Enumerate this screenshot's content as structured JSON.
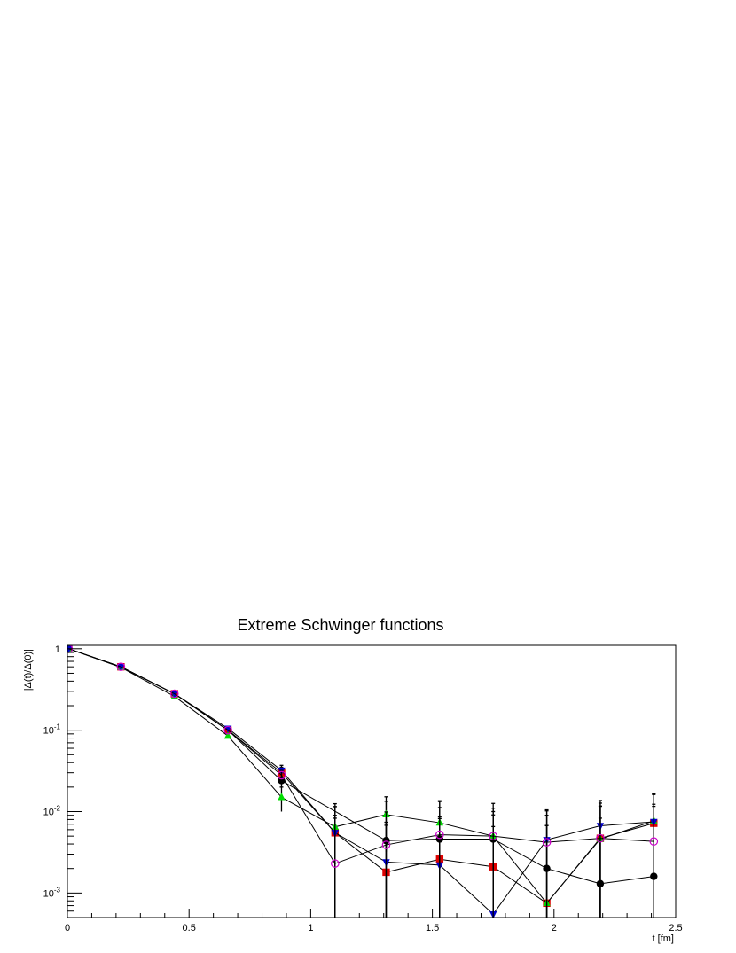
{
  "chart_data": {
    "type": "scatter",
    "title": "Extreme Schwinger functions",
    "xlabel": "t [fm]",
    "ylabel": "|Δ(t)/Δ(0)|",
    "xlim": [
      0,
      2.5
    ],
    "ylim": [
      0.0005,
      1.1
    ],
    "yscale": "log",
    "grid": false,
    "x_ticks": [
      0,
      0.5,
      1,
      1.5,
      2,
      2.5
    ],
    "x_tick_labels": [
      "0",
      "0.5",
      "1",
      "1.5",
      "2",
      "2.5"
    ],
    "y_ticks": [
      1,
      0.1,
      0.01,
      0.001
    ],
    "y_tick_labels": [
      {
        "base": "1",
        "exp": ""
      },
      {
        "base": "10",
        "exp": "-1"
      },
      {
        "base": "10",
        "exp": "-2"
      },
      {
        "base": "10",
        "exp": "-3"
      }
    ],
    "x": [
      0.005,
      0.22,
      0.44,
      0.66,
      0.88,
      1.1,
      1.31,
      1.53,
      1.75,
      1.97,
      2.19,
      2.41
    ],
    "series": [
      {
        "marker": "circle",
        "color": "#000000",
        "values": [
          1.0,
          0.6,
          0.28,
          0.1,
          0.024,
          null,
          0.0044,
          0.0046,
          0.0046,
          0.002,
          0.0013,
          0.0016
        ],
        "errors": [
          0,
          0,
          0,
          0,
          0.004,
          0.009,
          0.009,
          0.009,
          0.008,
          0.007,
          0.007,
          0.01
        ]
      },
      {
        "marker": "square",
        "color": "#dd0000",
        "values": [
          1.0,
          0.6,
          0.28,
          0.1,
          0.03,
          0.0055,
          0.0018,
          0.0026,
          0.0021,
          0.00075,
          0.0047,
          0.0072
        ],
        "errors": [
          0,
          0,
          0,
          0,
          0.005,
          0.006,
          0.005,
          0.006,
          0.007,
          0.006,
          0.008,
          0.009
        ]
      },
      {
        "marker": "triangle-up",
        "color": "#00dd00",
        "values": [
          1.0,
          0.59,
          0.26,
          0.085,
          0.015,
          0.0065,
          0.0092,
          0.0073,
          0.005,
          0.00075,
          0.0046,
          0.0077
        ],
        "errors": [
          0,
          0,
          0,
          0,
          0.005,
          0.006,
          0.006,
          0.006,
          0.005,
          0.006,
          0.007,
          0.009
        ]
      },
      {
        "marker": "triangle-down",
        "color": "#0000cc",
        "values": [
          1.0,
          0.6,
          0.28,
          0.105,
          0.032,
          0.0055,
          0.0024,
          0.0022,
          0.00055,
          0.0045,
          0.0067,
          0.0075
        ],
        "errors": [
          0,
          0,
          0,
          0,
          0.005,
          0.006,
          0.005,
          0.006,
          0.006,
          0.006,
          0.007,
          0.009
        ]
      },
      {
        "marker": "open-circle",
        "color": "#cc00cc",
        "values": [
          1.0,
          0.6,
          0.28,
          0.1,
          0.028,
          0.0023,
          0.0039,
          0.0052,
          0.005,
          0.0042,
          0.0047,
          0.0043
        ],
        "errors": [
          0,
          0,
          0,
          0,
          0.004,
          0.006,
          0.006,
          0.006,
          0.006,
          0.006,
          0.007,
          0.008
        ]
      }
    ]
  }
}
